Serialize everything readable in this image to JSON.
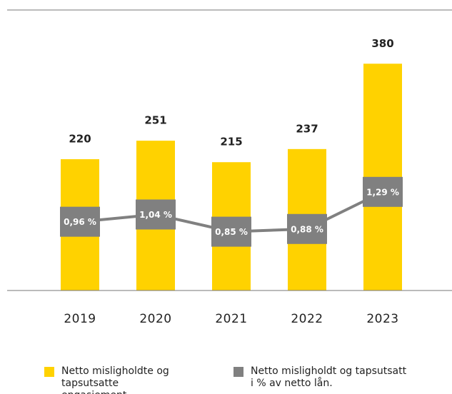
{
  "chart_data": {
    "type": "bar_line",
    "categories": [
      "2019",
      "2020",
      "2021",
      "2022",
      "2023"
    ],
    "series": [
      {
        "name": "Netto misligholdte og tapsutsatte engasjement.",
        "color": "#ffd200",
        "type": "bar",
        "values": [
          220,
          251,
          215,
          237,
          380
        ]
      },
      {
        "name": "Netto misligholdt og tapsutsatt i % av netto lån.",
        "color": "#808080",
        "type": "line",
        "axis": "y2",
        "values": [
          0.96,
          1.04,
          0.85,
          0.88,
          1.29
        ],
        "value_labels": [
          "0,96 %",
          "1,04 %",
          "0,85 %",
          "0,88 %",
          "1,29 %"
        ]
      }
    ],
    "ylim": [
      0,
      470
    ],
    "y2lim": [
      0.2,
      3.3
    ],
    "grid": false,
    "legend": "bottom"
  }
}
